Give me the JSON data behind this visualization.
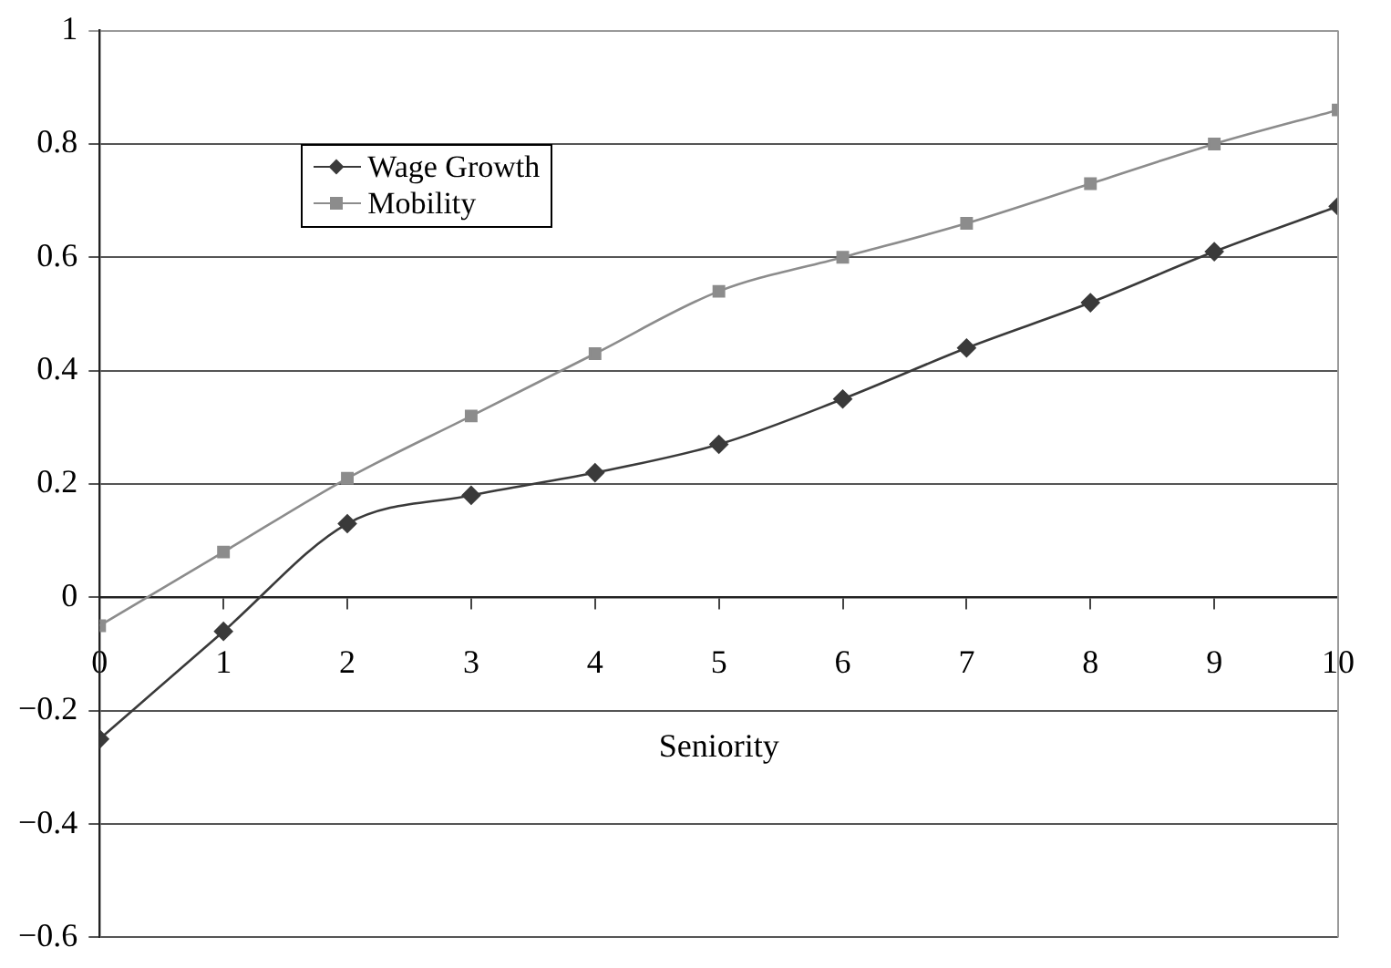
{
  "chart_data": {
    "type": "line",
    "xlabel": "Seniority",
    "x": [
      0,
      1,
      2,
      3,
      4,
      5,
      6,
      7,
      8,
      9,
      10
    ],
    "series": [
      {
        "name": "Wage Growth",
        "color": "#3a3a3a",
        "marker": "diamond",
        "values": [
          -0.25,
          -0.06,
          0.13,
          0.18,
          0.22,
          0.27,
          0.35,
          0.44,
          0.52,
          0.61,
          0.69
        ]
      },
      {
        "name": "Mobility",
        "color": "#8c8c8c",
        "marker": "square",
        "values": [
          -0.05,
          0.08,
          0.21,
          0.32,
          0.43,
          0.54,
          0.6,
          0.66,
          0.73,
          0.8,
          0.86
        ]
      }
    ],
    "xlim": [
      0,
      10
    ],
    "xticks": [
      0,
      1,
      2,
      3,
      4,
      5,
      6,
      7,
      8,
      9,
      10
    ],
    "ylim": [
      -0.6,
      1
    ],
    "yticks": [
      -0.6,
      -0.4,
      -0.2,
      0,
      0.2,
      0.4,
      0.6,
      0.8,
      1
    ],
    "grid": "y",
    "legend": "top left"
  }
}
